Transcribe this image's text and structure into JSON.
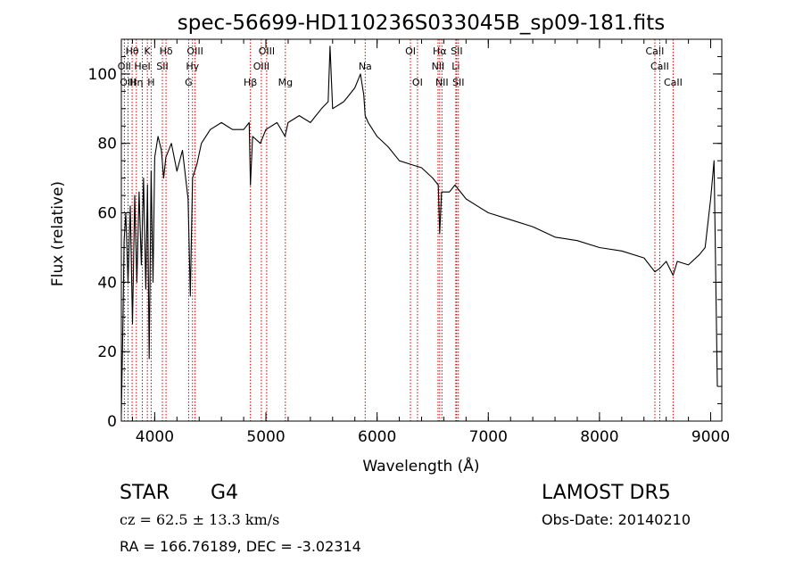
{
  "chart_data": {
    "type": "line",
    "title": "spec-56699-HD110236S033045B_sp09-181.fits",
    "xlabel": "Wavelength (Å)",
    "ylabel": "Flux (relative)",
    "xlim": [
      3700,
      9100
    ],
    "ylim": [
      0,
      110
    ],
    "xticks": [
      4000,
      5000,
      6000,
      7000,
      8000,
      9000
    ],
    "yticks": [
      0,
      20,
      40,
      60,
      80,
      100
    ],
    "grid": false,
    "series": [
      {
        "color": "#000000",
        "x": [
          3700,
          3715,
          3725,
          3740,
          3760,
          3780,
          3800,
          3820,
          3840,
          3860,
          3880,
          3900,
          3920,
          3935,
          3950,
          3968,
          3985,
          4000,
          4030,
          4060,
          4080,
          4100,
          4150,
          4200,
          4250,
          4300,
          4320,
          4340,
          4380,
          4420,
          4500,
          4600,
          4700,
          4800,
          4850,
          4861,
          4880,
          4950,
          5000,
          5100,
          5172,
          5200,
          5300,
          5400,
          5500,
          5560,
          5577,
          5600,
          5700,
          5800,
          5850,
          5880,
          5893,
          5920,
          6000,
          6100,
          6200,
          6300,
          6400,
          6500,
          6550,
          6563,
          6580,
          6650,
          6700,
          6800,
          6900,
          7000,
          7200,
          7400,
          7600,
          7800,
          8000,
          8200,
          8400,
          8498,
          8542,
          8600,
          8662,
          8700,
          8800,
          8900,
          8950,
          9000,
          9030,
          9060
        ],
        "y": [
          2,
          30,
          52,
          60,
          40,
          62,
          28,
          65,
          40,
          66,
          45,
          70,
          38,
          68,
          18,
          72,
          40,
          76,
          82,
          78,
          70,
          76,
          80,
          72,
          78,
          64,
          36,
          70,
          74,
          80,
          84,
          86,
          84,
          84,
          86,
          68,
          82,
          80,
          84,
          86,
          82,
          86,
          88,
          86,
          90,
          92,
          108,
          90,
          92,
          96,
          100,
          94,
          88,
          86,
          82,
          79,
          75,
          74,
          73,
          70,
          68,
          54,
          66,
          66,
          68,
          64,
          62,
          60,
          58,
          56,
          53,
          52,
          50,
          49,
          47,
          43,
          44,
          46,
          42,
          46,
          45,
          48,
          50,
          64,
          75,
          10
        ]
      }
    ],
    "lines": [
      {
        "label": "Hθ",
        "x": 3797,
        "row": 0
      },
      {
        "label": "K",
        "x": 3934,
        "row": 0
      },
      {
        "label": "Hδ",
        "x": 4102,
        "row": 0
      },
      {
        "label": "OIII",
        "x": 4363,
        "row": 0
      },
      {
        "label": "OIII",
        "x": 5007,
        "row": 0
      },
      {
        "label": "OI",
        "x": 6300,
        "row": 0
      },
      {
        "label": "Hα",
        "x": 6563,
        "row": 0
      },
      {
        "label": "SII",
        "x": 6716,
        "row": 0
      },
      {
        "label": "CaII",
        "x": 8498,
        "row": 0
      },
      {
        "label": "OII",
        "x": 3727,
        "row": 1
      },
      {
        "label": "HeI",
        "x": 3889,
        "row": 1
      },
      {
        "label": "SII",
        "x": 4069,
        "row": 1
      },
      {
        "label": "Hγ",
        "x": 4340,
        "row": 1
      },
      {
        "label": "OIII",
        "x": 4959,
        "row": 1
      },
      {
        "label": "Na",
        "x": 5893,
        "row": 1
      },
      {
        "label": "NII",
        "x": 6548,
        "row": 1
      },
      {
        "label": "Li",
        "x": 6708,
        "row": 1
      },
      {
        "label": "CaII",
        "x": 8542,
        "row": 1
      },
      {
        "label": "OIII",
        "x": 3760,
        "row": 2
      },
      {
        "label": "Hη",
        "x": 3835,
        "row": 2
      },
      {
        "label": "H",
        "x": 3968,
        "row": 2
      },
      {
        "label": "G",
        "x": 4305,
        "row": 2
      },
      {
        "label": "Hβ",
        "x": 4861,
        "row": 2
      },
      {
        "label": "Mg",
        "x": 5175,
        "row": 2
      },
      {
        "label": "OI",
        "x": 6363,
        "row": 2
      },
      {
        "label": "NII",
        "x": 6583,
        "row": 2
      },
      {
        "label": "SII",
        "x": 6731,
        "row": 2
      },
      {
        "label": "CaII",
        "x": 8662,
        "row": 2
      }
    ]
  },
  "info": {
    "object_class": "STAR",
    "subclass": "G4",
    "survey": "LAMOST DR5",
    "redshift": "cz = 62.5 ± 13.3 km/s",
    "obs_date": "Obs-Date: 20140210",
    "coords": "RA = 166.76189, DEC =  -3.02314"
  }
}
